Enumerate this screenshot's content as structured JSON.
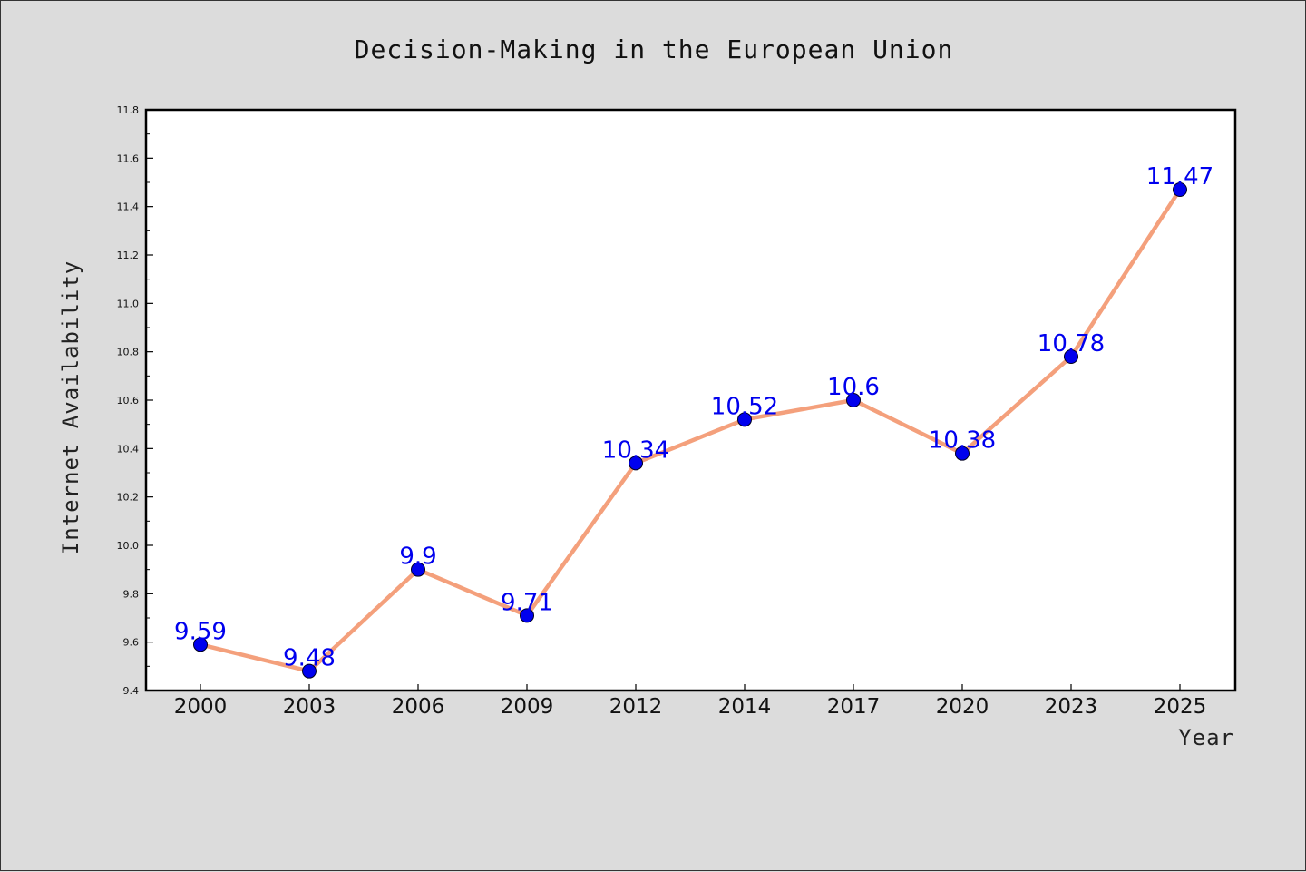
{
  "chart_data": {
    "type": "line",
    "title": "Decision-Making in the European Union",
    "xlabel": "Year",
    "ylabel": "Internet Availability",
    "categories": [
      "2000",
      "2003",
      "2006",
      "2009",
      "2012",
      "2014",
      "2017",
      "2020",
      "2023",
      "2025"
    ],
    "series": [
      {
        "values": [
          9.59,
          9.48,
          9.9,
          9.71,
          10.34,
          10.52,
          10.6,
          10.38,
          10.78,
          11.47
        ],
        "labels": [
          "9.59",
          "9.48",
          "9.9",
          "9.71",
          "10.34",
          "10.52",
          "10.6",
          "10.38",
          "10.78",
          "11.47"
        ],
        "line_color": "#f4a07c",
        "marker_color": "#0000ee",
        "label_color": "#0000ee"
      }
    ],
    "ylim": [
      9.4,
      11.8
    ],
    "yticks": [
      "9.4",
      "9.6",
      "9.8",
      "10.0",
      "10.2",
      "10.4",
      "10.6",
      "10.8",
      "11.0",
      "11.2",
      "11.4",
      "11.6",
      "11.8"
    ],
    "grid": false,
    "legend": "none",
    "background_color": "#dcdcdc",
    "plot_background_color": "#ffffff"
  }
}
